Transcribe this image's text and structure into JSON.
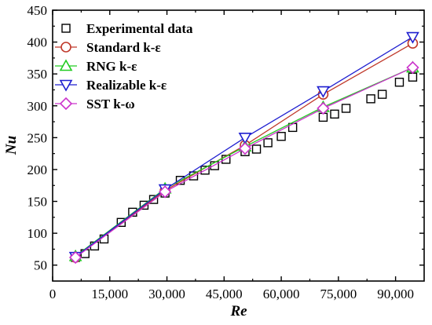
{
  "chart_data": {
    "type": "line",
    "title": "",
    "xlabel": "Re",
    "ylabel": "Nu",
    "xlim": [
      0,
      97500
    ],
    "ylim": [
      25,
      450
    ],
    "xticks": [
      0,
      15000,
      30000,
      45000,
      60000,
      75000,
      90000
    ],
    "xtick_labels": [
      "0",
      "15,000",
      "30,000",
      "45,000",
      "60,000",
      "75,000",
      "90,000"
    ],
    "yticks": [
      50,
      100,
      150,
      200,
      250,
      300,
      350,
      400,
      450
    ],
    "ytick_labels": [
      "50",
      "100",
      "150",
      "200",
      "250",
      "300",
      "350",
      "400",
      "450"
    ],
    "grid": false,
    "legend_position": "top-left",
    "series": [
      {
        "name": "Experimental data",
        "marker": "square",
        "color": "#000000",
        "line": false,
        "x": [
          6000,
          8500,
          11000,
          13500,
          18000,
          21000,
          24000,
          26500,
          29500,
          33500,
          37000,
          40000,
          42500,
          45500,
          50500,
          53500,
          56500,
          60000,
          63000,
          71000,
          74000,
          77000,
          83500,
          86500,
          91000,
          94500
        ],
        "y": [
          62,
          68,
          80,
          91,
          117,
          133,
          144,
          153,
          163,
          183,
          190,
          199,
          206,
          216,
          228,
          232,
          242,
          252,
          266,
          282,
          287,
          296,
          311,
          318,
          337,
          345
        ]
      },
      {
        "name": "Standard k-ε",
        "marker": "circle",
        "color": "#c0392b",
        "line": true,
        "x": [
          6000,
          29500,
          50500,
          71000,
          94500
        ],
        "y": [
          62,
          167,
          238,
          318,
          398
        ]
      },
      {
        "name": "RNG k-ε",
        "marker": "triangle-up",
        "color": "#22cc22",
        "line": true,
        "x": [
          6000,
          29500,
          50500,
          71000,
          94500
        ],
        "y": [
          64,
          170,
          236,
          298,
          360
        ]
      },
      {
        "name": "Realizable k-ε",
        "marker": "triangle-down",
        "color": "#1f1fd0",
        "line": true,
        "x": [
          6000,
          29500,
          50500,
          71000,
          94500
        ],
        "y": [
          63,
          169,
          250,
          323,
          408
        ]
      },
      {
        "name": "SST k-ω",
        "marker": "diamond",
        "color": "#cc33cc",
        "line": true,
        "x": [
          6000,
          29500,
          50500,
          71000,
          94500
        ],
        "y": [
          62,
          165,
          233,
          296,
          360
        ]
      }
    ]
  }
}
